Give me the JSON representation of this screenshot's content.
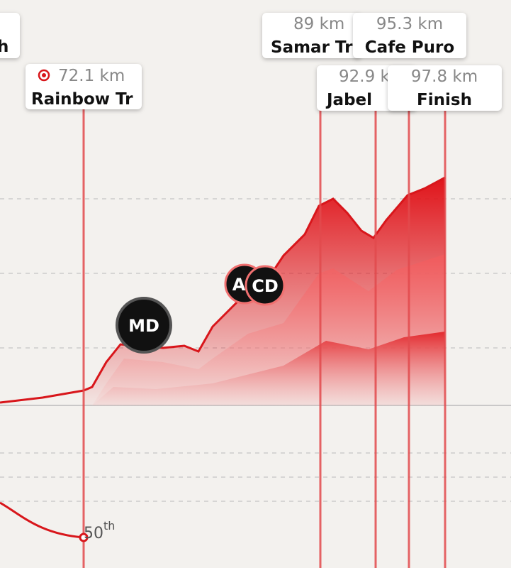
{
  "cards": [
    {
      "distance": null,
      "name": "h"
    },
    {
      "distance": "72.1 km",
      "name": "Rainbow Tr"
    },
    {
      "distance": "89 km",
      "name": "Samar Tr"
    },
    {
      "distance": "95.3 km",
      "name": "Cafe Puro"
    },
    {
      "distance": "92.9 k",
      "name": "Jabel"
    },
    {
      "distance": "97.8 km",
      "name": "Finish"
    }
  ],
  "markers": [
    "MD",
    "A",
    "CD"
  ],
  "rank": {
    "number": "50",
    "suffix": "th"
  }
}
